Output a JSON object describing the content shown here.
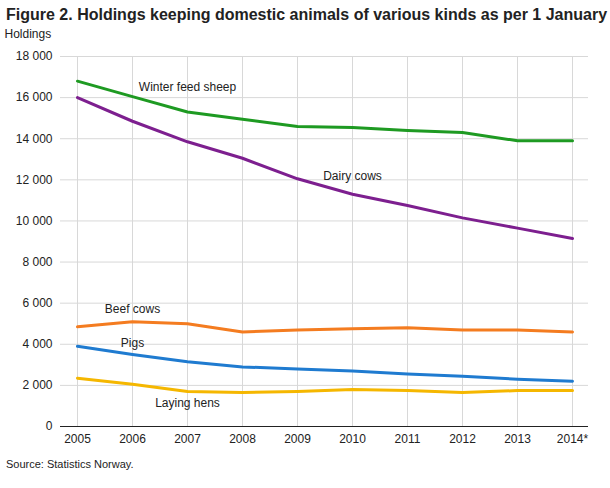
{
  "chart_data": {
    "type": "line",
    "title": "Figure 2. Holdings keeping domestic animals of various kinds as per 1 January",
    "y_label": "Holdings",
    "source": "Source: Statistics Norway.",
    "categories": [
      "2005",
      "2006",
      "2007",
      "2008",
      "2009",
      "2010",
      "2011",
      "2012",
      "2013",
      "2014*"
    ],
    "ylim": [
      0,
      18000
    ],
    "yticks": [
      0,
      {
        "value": 2000,
        "label": "2 000"
      },
      {
        "value": 4000,
        "label": "4 000"
      },
      {
        "value": 6000,
        "label": "6 000"
      },
      {
        "value": 8000,
        "label": "8 000"
      },
      {
        "value": 10000,
        "label": "10 000"
      },
      {
        "value": 12000,
        "label": "12 000"
      },
      {
        "value": 14000,
        "label": "14 000"
      },
      {
        "value": 16000,
        "label": "16 000"
      },
      {
        "value": 18000,
        "label": "18 000"
      }
    ],
    "grid": true,
    "series": [
      {
        "name": "Winter feed sheep",
        "color": "#1e9a22",
        "values": [
          16800,
          16050,
          15300,
          14950,
          14600,
          14550,
          14400,
          14300,
          13900,
          13900
        ],
        "label_x": "2007",
        "label_y": 16500
      },
      {
        "name": "Dairy cows",
        "color": "#7d1f8f",
        "values": [
          16000,
          14850,
          13850,
          13050,
          12050,
          11300,
          10750,
          10150,
          9650,
          9150
        ],
        "label_x": "2010",
        "label_y": 12200
      },
      {
        "name": "Beef cows",
        "color": "#f47c20",
        "values": [
          4850,
          5100,
          5000,
          4600,
          4700,
          4750,
          4800,
          4700,
          4700,
          4600
        ],
        "label_x": "2006",
        "label_y": 5700
      },
      {
        "name": "Pigs",
        "color": "#1f7bd0",
        "values": [
          3900,
          3500,
          3150,
          2900,
          2800,
          2700,
          2550,
          2450,
          2300,
          2200
        ],
        "label_x": "2006",
        "label_y": 4050
      },
      {
        "name": "Laying hens",
        "color": "#f5b700",
        "values": [
          2350,
          2050,
          1700,
          1650,
          1700,
          1800,
          1750,
          1650,
          1750,
          1750
        ],
        "label_x": "2007",
        "label_y": 1150
      }
    ]
  }
}
